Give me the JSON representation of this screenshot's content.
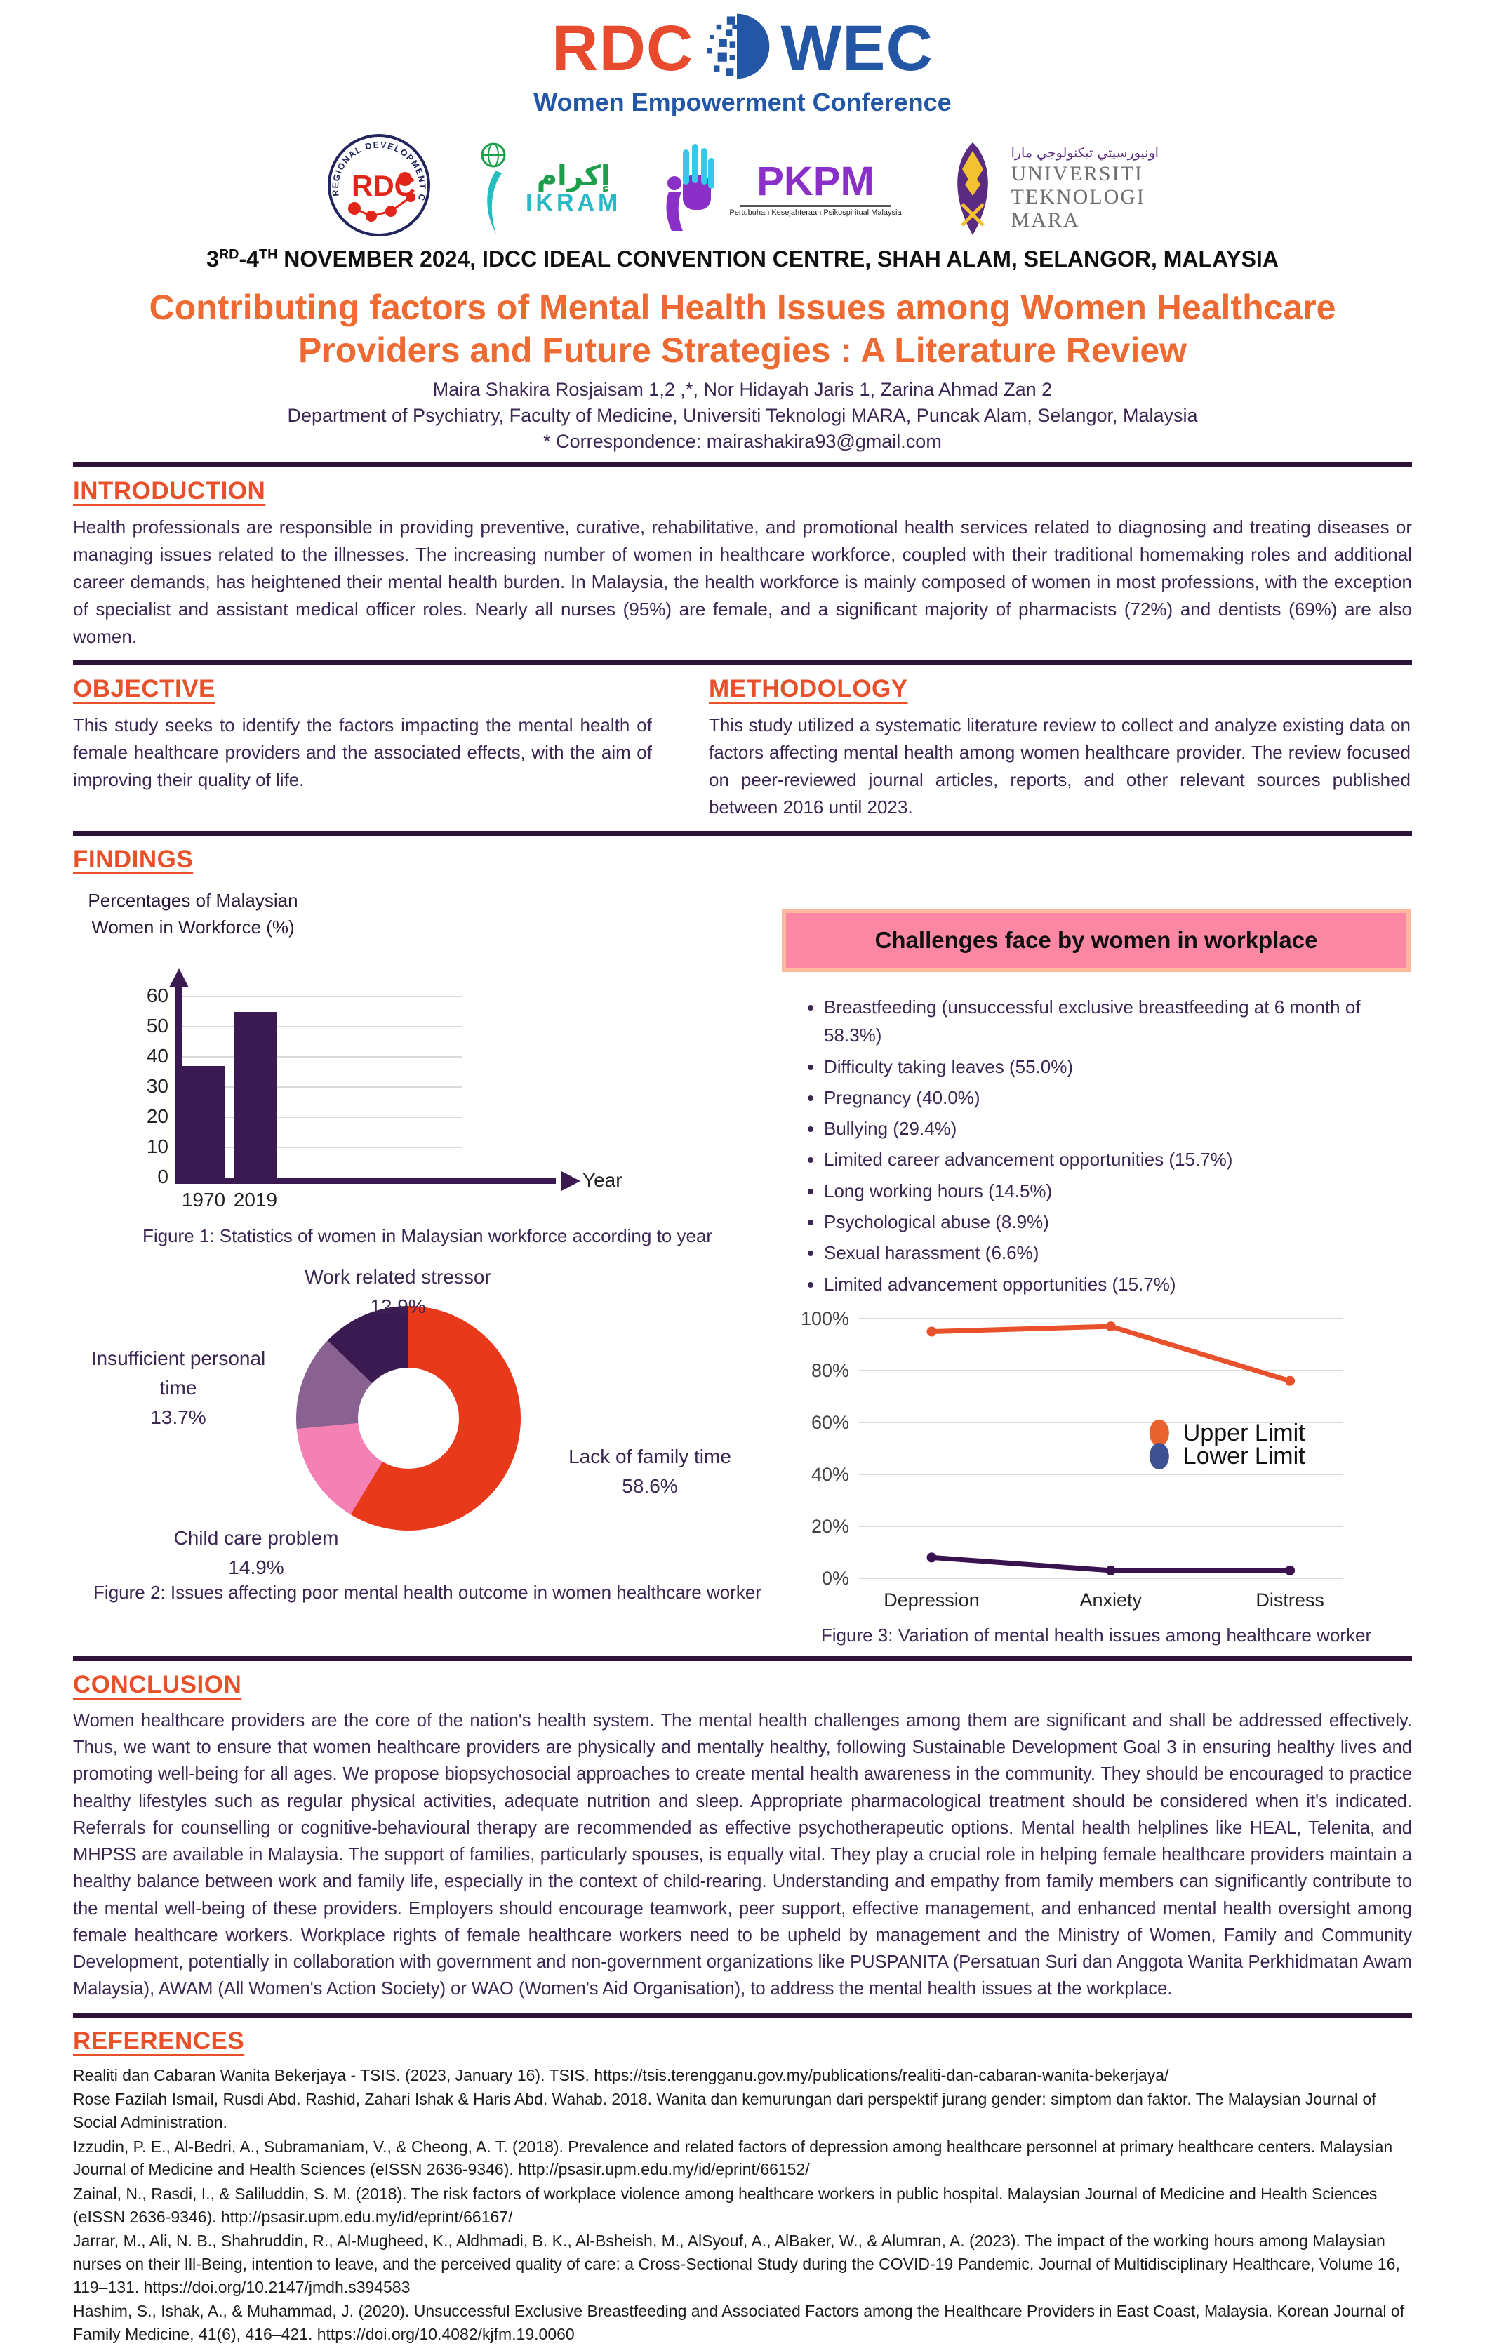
{
  "header": {
    "wec_logo": {
      "rdc": "RDC",
      "wec": "WEC",
      "subtitle": "Women Empowerment Conference"
    },
    "partners": {
      "rdc_badge": {
        "ring_text": "REGIONAL DEVELOPMENT COMMUNITY",
        "label": "RDC"
      },
      "ikram": {
        "arabic": "إكرام",
        "label": "IKRAM"
      },
      "pkpm": {
        "label": "PKPM",
        "subtitle": "Pertubuhan Kesejahteraan Psikospiritual Malaysia"
      },
      "uitm": {
        "arabic": "اونيورسيتي تيكنولوجي مارا",
        "lines": [
          "UNIVERSITI",
          "TEKNOLOGI",
          "MARA"
        ]
      }
    },
    "event": {
      "p1": "3",
      "s1": "RD",
      "p2": "-4",
      "s2": "TH",
      "p3": " NOVEMBER 2024, IDCC IDEAL CONVENTION CENTRE, SHAH ALAM, SELANGOR, MALAYSIA"
    }
  },
  "title": "Contributing factors of Mental Health Issues among Women Healthcare Providers and Future Strategies : A Literature Review",
  "authors": "Maira Shakira Rosjaisam 1,2 ,*, Nor Hidayah Jaris 1, Zarina Ahmad Zan 2",
  "affiliation": "Department of Psychiatry, Faculty of Medicine, Universiti Teknologi MARA, Puncak Alam, Selangor, Malaysia",
  "correspondence": "* Correspondence: mairashakira93@gmail.com",
  "sections": {
    "introduction": {
      "heading": "INTRODUCTION",
      "body": "Health professionals are responsible in providing preventive, curative, rehabilitative, and promotional health services related to diagnosing and treating diseases or managing issues related to the illnesses. The increasing number of women in healthcare workforce, coupled with their traditional homemaking roles and additional career demands, has heightened their mental health burden. In Malaysia, the health workforce is mainly composed of women in most professions, with the exception of specialist and assistant medical officer roles. Nearly all nurses (95%) are female, and a significant majority of pharmacists (72%) and dentists (69%) are also women."
    },
    "objective": {
      "heading": "OBJECTIVE",
      "body": "This study seeks to identify the factors impacting the mental health of female healthcare providers and the associated effects, with the aim of improving their quality of life."
    },
    "methodology": {
      "heading": "METHODOLOGY",
      "body": "This study utilized a systematic literature review to collect and analyze existing data on factors affecting mental health among women healthcare provider. The review focused on peer-reviewed journal articles, reports, and other relevant sources published between 2016 until 2023."
    },
    "findings": {
      "heading": "FINDINGS"
    },
    "conclusion": {
      "heading": "CONCLUSION",
      "body": "Women healthcare providers are the core of the nation's health system. The mental health challenges among them are significant and shall be addressed effectively. Thus, we want to ensure that women healthcare providers are physically and mentally healthy, following Sustainable Development Goal 3 in ensuring healthy lives and promoting well-being for all ages. We propose biopsychosocial approaches to create mental health awareness in the community. They should be encouraged to practice healthy lifestyles such as regular physical activities, adequate nutrition and sleep. Appropriate pharmacological treatment should be considered when it's indicated. Referrals for counselling or cognitive-behavioural therapy are recommended as effective psychotherapeutic options. Mental health helplines like HEAL, Telenita, and MHPSS are available in Malaysia. The support of families, particularly spouses, is equally vital. They play a crucial role in helping female healthcare providers maintain a healthy balance between work and family life, especially in the context of child-rearing. Understanding and empathy from family members can significantly contribute to the mental well-being of these providers. Employers should encourage teamwork, peer support, effective management, and enhanced mental health oversight among female healthcare workers. Workplace rights of female healthcare workers need to be upheld by management and the Ministry of Women, Family and Community Development, potentially in collaboration with government and non-government organizations like PUSPANITA (Persatuan Suri dan Anggota Wanita Perkhidmatan Awam Malaysia), AWAM (All Women's Action Society) or WAO (Women's Aid Organisation), to address the mental health issues at the workplace."
    },
    "references": {
      "heading": "REFERENCES",
      "items": [
        "Realiti dan Cabaran Wanita Bekerjaya - TSIS. (2023, January 16). TSIS. https://tsis.terengganu.gov.my/publications/realiti-dan-cabaran-wanita-bekerjaya/",
        "Rose Fazilah Ismail, Rusdi Abd. Rashid, Zahari Ishak & Haris Abd. Wahab. 2018. Wanita dan kemurungan dari perspektif jurang gender: simptom dan faktor. The Malaysian Journal of Social Administration.",
        "Izzudin, P. E., Al-Bedri, A., Subramaniam, V., & Cheong, A. T. (2018). Prevalence and related factors of depression among healthcare personnel at primary healthcare centers. Malaysian Journal of Medicine and Health Sciences (eISSN 2636-9346). http://psasir.upm.edu.my/id/eprint/66152/",
        "Zainal, N., Rasdi, I., & Saliluddin, S. M. (2018). The risk factors of workplace violence among healthcare workers in public hospital. Malaysian Journal of Medicine and Health Sciences (eISSN 2636-9346). http://psasir.upm.edu.my/id/eprint/66167/",
        "Jarrar, M., Ali, N. B., Shahruddin, R., Al-Mugheed, K., Aldhmadi, B. K., Al-Bsheish, M., AlSyouf, A., AlBaker, W., & Alumran, A. (2023). The impact of the working hours among Malaysian nurses on their Ill-Being, intention to leave, and the perceived quality of care: a Cross-Sectional Study during the COVID-19 Pandemic. Journal of Multidisciplinary Healthcare, Volume 16, 119–131. https://doi.org/10.2147/jmdh.s394583",
        "Hashim, S., Ishak, A., & Muhammad, J. (2020). Unsuccessful Exclusive Breastfeeding and Associated Factors among the Healthcare Providers in East Coast, Malaysia. Korean Journal of Family Medicine, 41(6), 416–421. https://doi.org/10.4082/kjfm.19.0060"
      ]
    }
  },
  "challenges": {
    "title": "Challenges face by women in workplace",
    "items": [
      "Breastfeeding (unsuccessful exclusive breastfeeding at 6 month of 58.3%)",
      "Difficulty taking leaves (55.0%)",
      "Pregnancy (40.0%)",
      "Bullying (29.4%)",
      "Limited career advancement opportunities (15.7%)",
      "Long working hours (14.5%)",
      "Psychological abuse (8.9%)",
      "Sexual harassment (6.6%)",
      "Limited advancement opportunities (15.7%)"
    ]
  },
  "chart_data": [
    {
      "type": "bar",
      "title": "Percentages of Malaysian Women in Workforce (%)",
      "xlabel": "Year",
      "ylabel": "",
      "categories": [
        "1970",
        "2019"
      ],
      "values": [
        37,
        55
      ],
      "ylim": [
        0,
        60
      ],
      "yticks": [
        0,
        10,
        20,
        30,
        40,
        50,
        60
      ],
      "grid": true,
      "bar_color": "#3B1A52",
      "caption": "Figure 1: Statistics of women in Malaysian workforce according to year"
    },
    {
      "type": "pie",
      "donut": true,
      "caption": "Figure 2: Issues affecting poor mental health outcome in women healthcare worker",
      "slices": [
        {
          "label": "Lack of family time",
          "value": 58.6,
          "pct_text": "58.6%",
          "color": "#E8391B"
        },
        {
          "label": "Child care problem",
          "value": 14.9,
          "pct_text": "14.9%",
          "color": "#F480B4"
        },
        {
          "label": "Insufficient personal time",
          "value": 13.7,
          "pct_text": "13.7%",
          "color": "#8A6292"
        },
        {
          "label": "Work related stressor",
          "value": 12.9,
          "pct_text": "12.9%",
          "color": "#3B1A52"
        }
      ]
    },
    {
      "type": "line",
      "categories": [
        "Depression",
        "Anxiety",
        "Distress"
      ],
      "series": [
        {
          "name": "Upper Limit",
          "values": [
            95,
            97,
            76
          ],
          "color": "#E8512B",
          "legend_color": "#E8622D"
        },
        {
          "name": "Lower Limit",
          "values": [
            8,
            3,
            3
          ],
          "color": "#3A1250",
          "legend_color": "#3D5193"
        }
      ],
      "ylim": [
        0,
        100
      ],
      "ytick_step": 20,
      "ytick_suffix": "%",
      "grid": true,
      "legend_position": "right-middle",
      "caption": "Figure 3: Variation of mental health issues among healthcare worker"
    }
  ]
}
